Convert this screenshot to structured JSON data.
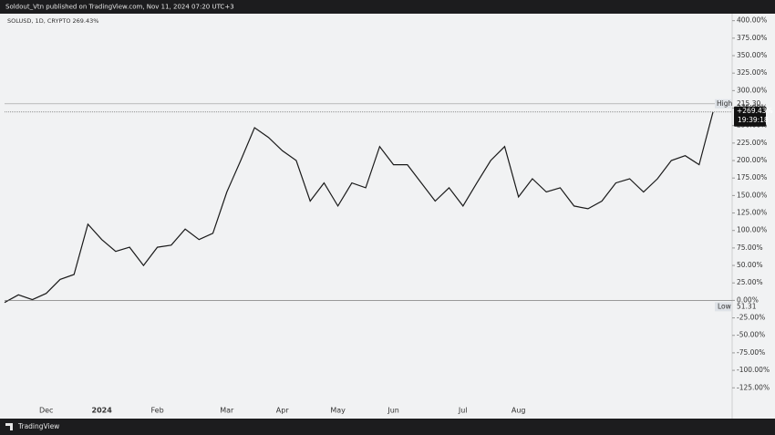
{
  "chart_data": {
    "type": "line",
    "header": "Soldout_Vtn published on TradingView.com, Nov 11, 2024 07:20 UTC+3",
    "title": "SOLUSD, 1D, CRYPTO  269.43%",
    "footer": "TradingView",
    "high_label": "High",
    "high_price": "215.30",
    "low_label": "Low",
    "low_price": "51.31",
    "last_label": "+269.43%",
    "countdown": "19:39:18",
    "categories": [
      null,
      null,
      null,
      "Dec",
      null,
      null,
      null,
      "2024",
      null,
      null,
      null,
      "Feb",
      null,
      null,
      null,
      null,
      "Mar",
      null,
      null,
      null,
      "Apr",
      null,
      null,
      null,
      "May",
      null,
      null,
      null,
      "Jun",
      null,
      null,
      null,
      null,
      "Jul",
      null,
      null,
      null,
      "Aug",
      null,
      null,
      null,
      null,
      null,
      null,
      null,
      null,
      null,
      null,
      null,
      null,
      null,
      null
    ],
    "series": [
      {
        "name": "SOLUSD",
        "color": "#1a1a1a",
        "values": [
          -3,
          8,
          1,
          10,
          30,
          37,
          109,
          87,
          70,
          76,
          50,
          76,
          79,
          102,
          87,
          96,
          155,
          200,
          247,
          233,
          214,
          200,
          142,
          168,
          135,
          168,
          161,
          220,
          194,
          194,
          168,
          142,
          161,
          135,
          168,
          200,
          220,
          148,
          174,
          155,
          161,
          135,
          131,
          142,
          168,
          174,
          155,
          174,
          200,
          207,
          194,
          269.43
        ]
      }
    ],
    "ylim": [
      -169,
      410
    ],
    "yticks": [
      {
        "value": 400,
        "label": "400.00%"
      },
      {
        "value": 375,
        "label": "375.00%"
      },
      {
        "value": 350,
        "label": "350.00%"
      },
      {
        "value": 325,
        "label": "325.00%"
      },
      {
        "value": 300,
        "label": "300.00%"
      },
      {
        "value": 275,
        "label": "275.00%"
      },
      {
        "value": 250,
        "label": "250.00%"
      },
      {
        "value": 225,
        "label": "225.00%"
      },
      {
        "value": 200,
        "label": "200.00%"
      },
      {
        "value": 175,
        "label": "175.00%"
      },
      {
        "value": 150,
        "label": "150.00%"
      },
      {
        "value": 125,
        "label": "125.00%"
      },
      {
        "value": 100,
        "label": "100.00%"
      },
      {
        "value": 75,
        "label": "75.00%"
      },
      {
        "value": 50,
        "label": "50.00%"
      },
      {
        "value": 25,
        "label": "25.00%"
      },
      {
        "value": 0,
        "label": "0.00%"
      },
      {
        "value": -25,
        "label": "-25.00%"
      },
      {
        "value": -50,
        "label": "-50.00%"
      },
      {
        "value": -75,
        "label": "-75.00%"
      },
      {
        "value": -100,
        "label": "-100.00%"
      },
      {
        "value": -125,
        "label": "-125.00%"
      }
    ],
    "grid": false
  }
}
